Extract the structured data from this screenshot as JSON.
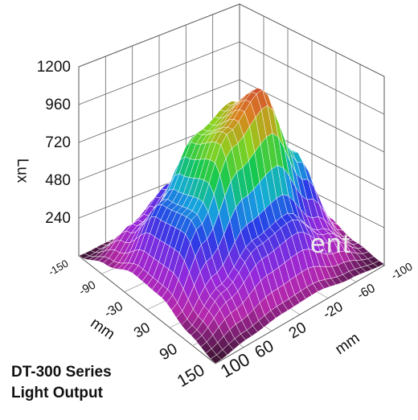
{
  "chart_data": {
    "type": "surface3d",
    "title": "DT-300 Series",
    "subtitle": "Light Output",
    "zlabel": "Lux",
    "xlabel": "mm",
    "ylabel": "mm",
    "z_ticks": [
      240,
      480,
      720,
      960,
      1200
    ],
    "z_range": [
      0,
      1200
    ],
    "left_axis_ticks": [
      -150,
      -90,
      -30,
      30,
      90,
      150
    ],
    "left_axis_range": [
      -150,
      150
    ],
    "right_axis_ticks": [
      -100,
      -60,
      -20,
      20,
      60,
      100
    ],
    "right_axis_range": [
      -100,
      100
    ],
    "grid": true,
    "surface": {
      "left_axis_mm": [
        -150,
        -90,
        -30,
        30,
        90,
        150
      ],
      "right_axis_mm": [
        -100,
        -60,
        -20,
        20,
        60,
        100
      ],
      "lux": [
        [
          0,
          20,
          90,
          140,
          60,
          10
        ],
        [
          0,
          150,
          520,
          650,
          240,
          40
        ],
        [
          20,
          350,
          960,
          1150,
          450,
          80
        ],
        [
          40,
          420,
          860,
          980,
          400,
          70
        ],
        [
          20,
          260,
          520,
          560,
          230,
          40
        ],
        [
          0,
          80,
          160,
          150,
          60,
          0
        ]
      ]
    }
  },
  "watermark": "ent"
}
